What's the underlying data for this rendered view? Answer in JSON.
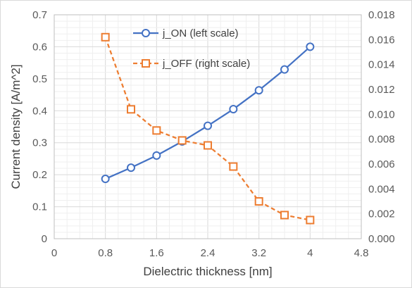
{
  "chart_data": {
    "type": "line",
    "xlabel": "Dielectric thickness [nm]",
    "ylabel": "Current density [A/m^2]",
    "x_ticks": [
      "0",
      "0.8",
      "1.6",
      "2.4",
      "3.2",
      "4",
      "4.8"
    ],
    "xlim": [
      0,
      4.8
    ],
    "y_left_ticks": [
      "0",
      "0.1",
      "0.2",
      "0.3",
      "0.4",
      "0.5",
      "0.6",
      "0.7"
    ],
    "ylim_left": [
      0,
      0.7
    ],
    "y_right_ticks": [
      "0.000",
      "0.002",
      "0.004",
      "0.006",
      "0.008",
      "0.010",
      "0.012",
      "0.014",
      "0.016",
      "0.018"
    ],
    "ylim_right": [
      0,
      0.018
    ],
    "grid": true,
    "legend_position": "top-center",
    "series": [
      {
        "name": "j_ON (left scale)",
        "axis": "left",
        "color": "#4472c4",
        "marker": "circle",
        "line": "solid",
        "x": [
          0.8,
          1.2,
          1.6,
          2.0,
          2.4,
          2.8,
          3.2,
          3.6,
          4.0
        ],
        "y": [
          0.187,
          0.222,
          0.26,
          0.304,
          0.353,
          0.405,
          0.464,
          0.529,
          0.6
        ]
      },
      {
        "name": "j_OFF (right scale)",
        "axis": "right",
        "color": "#ed7d31",
        "marker": "square",
        "line": "dashed",
        "x": [
          0.8,
          1.2,
          1.6,
          2.0,
          2.4,
          2.8,
          3.2,
          3.6,
          4.0
        ],
        "y": [
          0.0162,
          0.0104,
          0.0087,
          0.0079,
          0.0075,
          0.0058,
          0.003,
          0.0019,
          0.0015
        ]
      }
    ]
  }
}
